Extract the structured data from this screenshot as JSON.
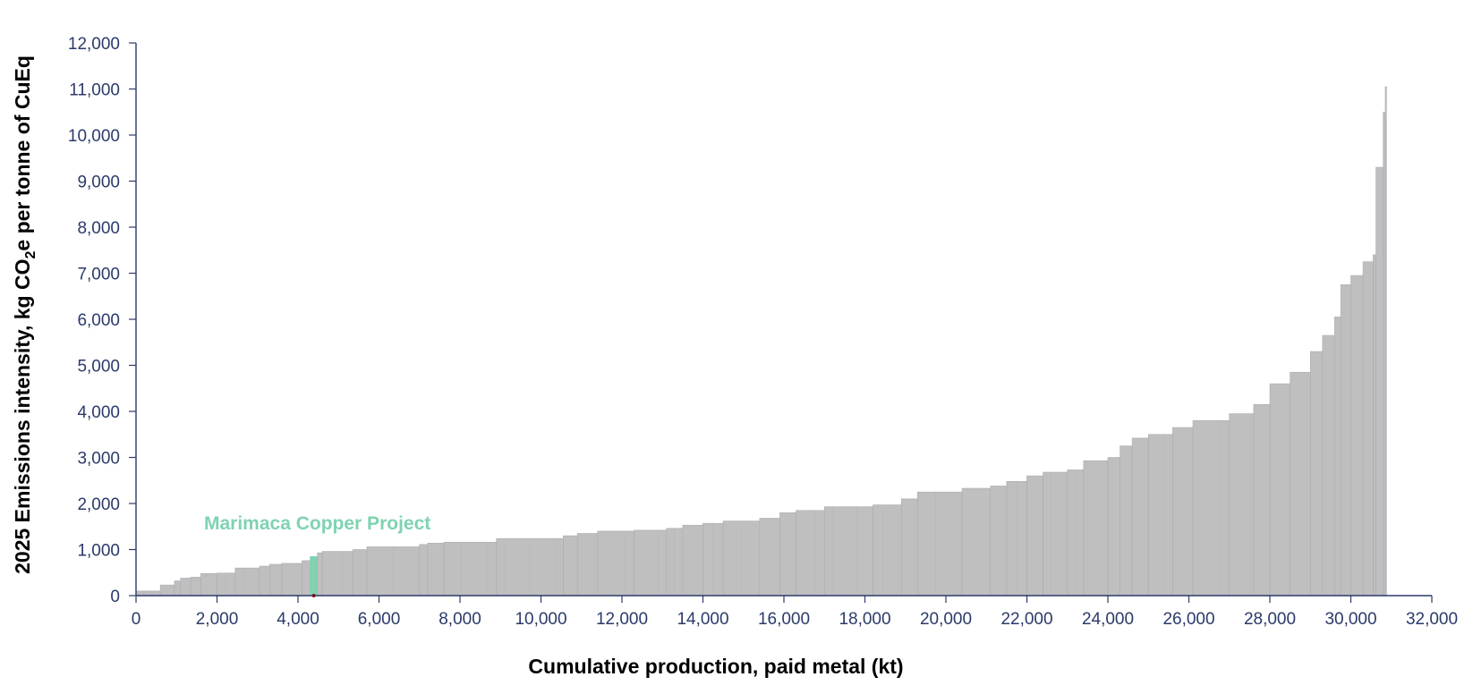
{
  "chart_data": {
    "type": "bar",
    "subtype": "cost-curve",
    "xlabel": "Cumulative production, paid metal (kt)",
    "ylabel_parts": [
      "2025 Emissions intensity, kg CO",
      "2",
      "e per tonne of CuEq"
    ],
    "xlim": [
      0,
      32000
    ],
    "ylim": [
      0,
      12000
    ],
    "x_ticks": [
      0,
      2000,
      4000,
      6000,
      8000,
      10000,
      12000,
      14000,
      16000,
      18000,
      20000,
      22000,
      24000,
      26000,
      28000,
      30000,
      32000
    ],
    "x_tick_labels": [
      "0",
      "2,000",
      "4,000",
      "6,000",
      "8,000",
      "10,000",
      "12,000",
      "14,000",
      "16,000",
      "18,000",
      "20,000",
      "22,000",
      "24,000",
      "26,000",
      "28,000",
      "30,000",
      "32,000"
    ],
    "y_ticks": [
      0,
      1000,
      2000,
      3000,
      4000,
      5000,
      6000,
      7000,
      8000,
      9000,
      10000,
      11000,
      12000
    ],
    "y_tick_labels": [
      "0",
      "1,000",
      "2,000",
      "3,000",
      "4,000",
      "5,000",
      "6,000",
      "7,000",
      "8,000",
      "9,000",
      "10,000",
      "11,000",
      "12,000"
    ],
    "grid": false,
    "legend": "none",
    "bar_color": "#bfbfbf",
    "bar_edge_color": "#a9acb3",
    "highlight_color": "#7fd3b0",
    "axis_color": "#2b3a6b",
    "annotation": {
      "text": "Marimaca Copper Project",
      "color": "#7fd3b0",
      "x_start": 4300,
      "x_end": 4480,
      "y": 850
    },
    "curve": [
      [
        0,
        200,
        100
      ],
      [
        200,
        600,
        100
      ],
      [
        600,
        950,
        230
      ],
      [
        950,
        1100,
        320
      ],
      [
        1100,
        1350,
        380
      ],
      [
        1350,
        1600,
        400
      ],
      [
        1600,
        2000,
        480
      ],
      [
        2000,
        2450,
        490
      ],
      [
        2450,
        3050,
        600
      ],
      [
        3050,
        3300,
        640
      ],
      [
        3300,
        3600,
        680
      ],
      [
        3600,
        4100,
        700
      ],
      [
        4100,
        4300,
        760
      ],
      [
        4300,
        4480,
        850
      ],
      [
        4480,
        4600,
        930
      ],
      [
        4600,
        5350,
        960
      ],
      [
        5350,
        5700,
        1000
      ],
      [
        5700,
        7000,
        1060
      ],
      [
        7000,
        7200,
        1110
      ],
      [
        7200,
        7600,
        1140
      ],
      [
        7600,
        8900,
        1160
      ],
      [
        8900,
        10550,
        1240
      ],
      [
        10550,
        10900,
        1300
      ],
      [
        10900,
        11400,
        1350
      ],
      [
        11400,
        12300,
        1400
      ],
      [
        12300,
        13100,
        1420
      ],
      [
        13100,
        13500,
        1460
      ],
      [
        13500,
        14000,
        1530
      ],
      [
        14000,
        14500,
        1570
      ],
      [
        14500,
        15400,
        1620
      ],
      [
        15400,
        15900,
        1680
      ],
      [
        15900,
        16300,
        1800
      ],
      [
        16300,
        17000,
        1850
      ],
      [
        17000,
        18200,
        1930
      ],
      [
        18200,
        18900,
        1970
      ],
      [
        18900,
        19300,
        2100
      ],
      [
        19300,
        20400,
        2250
      ],
      [
        20400,
        21100,
        2330
      ],
      [
        21100,
        21500,
        2380
      ],
      [
        21500,
        22000,
        2480
      ],
      [
        22000,
        22400,
        2600
      ],
      [
        22400,
        23000,
        2680
      ],
      [
        23000,
        23400,
        2730
      ],
      [
        23400,
        24000,
        2930
      ],
      [
        24000,
        24300,
        3000
      ],
      [
        24300,
        24600,
        3250
      ],
      [
        24600,
        25000,
        3420
      ],
      [
        25000,
        25600,
        3500
      ],
      [
        25600,
        26100,
        3650
      ],
      [
        26100,
        27000,
        3800
      ],
      [
        27000,
        27600,
        3950
      ],
      [
        27600,
        28000,
        4150
      ],
      [
        28000,
        28500,
        4600
      ],
      [
        28500,
        29000,
        4850
      ],
      [
        29000,
        29300,
        5300
      ],
      [
        29300,
        29600,
        5650
      ],
      [
        29600,
        29750,
        6050
      ],
      [
        29750,
        30000,
        6750
      ],
      [
        30000,
        30300,
        6950
      ],
      [
        30300,
        30550,
        7250
      ],
      [
        30550,
        30620,
        7400
      ],
      [
        30620,
        30800,
        9300
      ],
      [
        30800,
        30850,
        10500
      ],
      [
        30850,
        30880,
        11050
      ]
    ]
  }
}
